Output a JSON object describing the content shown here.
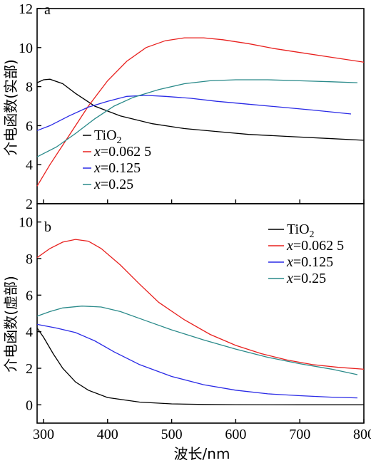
{
  "colors": {
    "TiO2": "#000000",
    "x0625": "#e8201e",
    "x0125": "#2a2ae6",
    "x025": "#2a8a8a"
  },
  "xlabel": "波长/nm",
  "chart_data": [
    {
      "type": "line",
      "panel_letter": "a",
      "ylabel": "介电函数(实部)",
      "xlim": [
        290,
        800
      ],
      "ylim": [
        2,
        12
      ],
      "xticks": [
        300,
        400,
        500,
        600,
        700,
        800
      ],
      "yticks": [
        2,
        4,
        6,
        8,
        10,
        12
      ],
      "legend_position": "lower-left",
      "series": [
        {
          "name": "TiO2",
          "label_main": "TiO",
          "label_sub": "2",
          "color_key": "TiO2",
          "points": [
            [
              290,
              8.2
            ],
            [
              300,
              8.35
            ],
            [
              310,
              8.38
            ],
            [
              330,
              8.15
            ],
            [
              350,
              7.65
            ],
            [
              380,
              7.0
            ],
            [
              420,
              6.5
            ],
            [
              470,
              6.1
            ],
            [
              520,
              5.85
            ],
            [
              570,
              5.7
            ],
            [
              620,
              5.55
            ],
            [
              680,
              5.45
            ],
            [
              740,
              5.35
            ],
            [
              800,
              5.25
            ]
          ]
        },
        {
          "name": "x=0.062 5",
          "label_main": "=0.062 5",
          "label_var": "x",
          "color_key": "x0625",
          "points": [
            [
              290,
              2.9
            ],
            [
              310,
              4.0
            ],
            [
              340,
              5.5
            ],
            [
              370,
              7.0
            ],
            [
              400,
              8.3
            ],
            [
              430,
              9.3
            ],
            [
              460,
              10.0
            ],
            [
              490,
              10.35
            ],
            [
              520,
              10.5
            ],
            [
              550,
              10.5
            ],
            [
              580,
              10.4
            ],
            [
              620,
              10.2
            ],
            [
              660,
              9.95
            ],
            [
              700,
              9.75
            ],
            [
              750,
              9.5
            ],
            [
              800,
              9.25
            ]
          ]
        },
        {
          "name": "x=0.125",
          "label_main": "=0.125",
          "label_var": "x",
          "color_key": "x0125",
          "points": [
            [
              290,
              5.75
            ],
            [
              310,
              6.0
            ],
            [
              340,
              6.5
            ],
            [
              370,
              6.95
            ],
            [
              400,
              7.25
            ],
            [
              430,
              7.5
            ],
            [
              460,
              7.55
            ],
            [
              490,
              7.5
            ],
            [
              530,
              7.4
            ],
            [
              570,
              7.25
            ],
            [
              620,
              7.1
            ],
            [
              670,
              6.95
            ],
            [
              720,
              6.8
            ],
            [
              780,
              6.6
            ]
          ]
        },
        {
          "name": "x=0.25",
          "label_main": "=0.25",
          "label_var": "x",
          "color_key": "x025",
          "points": [
            [
              290,
              4.4
            ],
            [
              320,
              4.9
            ],
            [
              350,
              5.6
            ],
            [
              380,
              6.35
            ],
            [
              410,
              7.0
            ],
            [
              440,
              7.45
            ],
            [
              480,
              7.85
            ],
            [
              520,
              8.15
            ],
            [
              560,
              8.3
            ],
            [
              600,
              8.35
            ],
            [
              650,
              8.35
            ],
            [
              700,
              8.3
            ],
            [
              750,
              8.25
            ],
            [
              790,
              8.2
            ]
          ]
        }
      ]
    },
    {
      "type": "line",
      "panel_letter": "b",
      "ylabel": "介电函数(虚部)",
      "xlim": [
        290,
        800
      ],
      "ylim": [
        -1,
        11
      ],
      "xticks": [
        300,
        400,
        500,
        600,
        700,
        800
      ],
      "yticks": [
        0,
        2,
        4,
        6,
        8,
        10
      ],
      "legend_position": "top-right",
      "series": [
        {
          "name": "TiO2",
          "label_main": "TiO",
          "label_sub": "2",
          "color_key": "TiO2",
          "points": [
            [
              290,
              4.2
            ],
            [
              300,
              3.7
            ],
            [
              315,
              2.8
            ],
            [
              330,
              2.0
            ],
            [
              350,
              1.25
            ],
            [
              370,
              0.8
            ],
            [
              400,
              0.4
            ],
            [
              450,
              0.15
            ],
            [
              500,
              0.05
            ],
            [
              550,
              0.02
            ],
            [
              600,
              0.01
            ],
            [
              700,
              0.0
            ],
            [
              800,
              0.0
            ]
          ]
        },
        {
          "name": "x=0.062 5",
          "label_main": "=0.062 5",
          "label_var": "x",
          "color_key": "x0625",
          "points": [
            [
              290,
              8.05
            ],
            [
              310,
              8.55
            ],
            [
              330,
              8.9
            ],
            [
              350,
              9.05
            ],
            [
              370,
              8.95
            ],
            [
              390,
              8.55
            ],
            [
              420,
              7.65
            ],
            [
              450,
              6.6
            ],
            [
              480,
              5.6
            ],
            [
              520,
              4.65
            ],
            [
              560,
              3.85
            ],
            [
              600,
              3.25
            ],
            [
              640,
              2.8
            ],
            [
              680,
              2.45
            ],
            [
              720,
              2.2
            ],
            [
              760,
              2.05
            ],
            [
              800,
              1.95
            ]
          ]
        },
        {
          "name": "x=0.125",
          "label_main": "=0.125",
          "label_var": "x",
          "color_key": "x0125",
          "points": [
            [
              290,
              4.4
            ],
            [
              320,
              4.2
            ],
            [
              350,
              3.95
            ],
            [
              380,
              3.5
            ],
            [
              410,
              2.9
            ],
            [
              450,
              2.2
            ],
            [
              500,
              1.55
            ],
            [
              550,
              1.1
            ],
            [
              600,
              0.8
            ],
            [
              650,
              0.6
            ],
            [
              700,
              0.5
            ],
            [
              750,
              0.42
            ],
            [
              790,
              0.38
            ]
          ]
        },
        {
          "name": "x=0.25",
          "label_main": "=0.25",
          "label_var": "x",
          "color_key": "x025",
          "points": [
            [
              290,
              4.85
            ],
            [
              310,
              5.1
            ],
            [
              330,
              5.3
            ],
            [
              360,
              5.4
            ],
            [
              390,
              5.35
            ],
            [
              420,
              5.1
            ],
            [
              460,
              4.6
            ],
            [
              500,
              4.1
            ],
            [
              550,
              3.55
            ],
            [
              600,
              3.05
            ],
            [
              650,
              2.6
            ],
            [
              700,
              2.25
            ],
            [
              750,
              1.95
            ],
            [
              790,
              1.65
            ]
          ]
        }
      ]
    }
  ]
}
